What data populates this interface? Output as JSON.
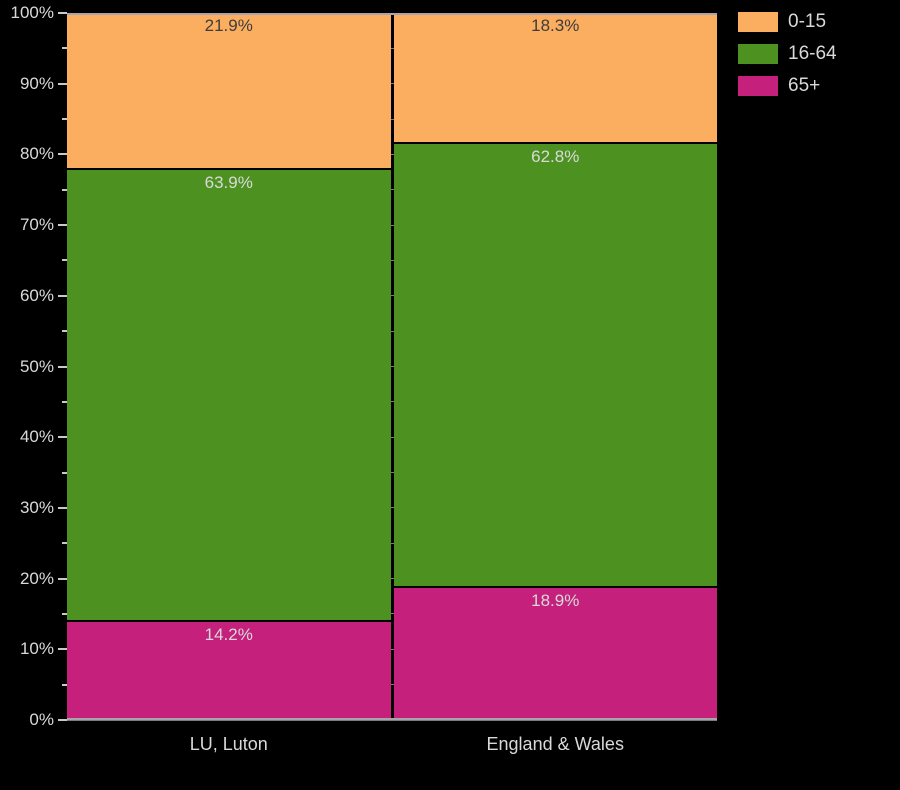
{
  "chart_data": {
    "type": "bar",
    "subtype": "stacked-percentage-columns",
    "title": "",
    "categories": [
      "LU, Luton",
      "England & Wales"
    ],
    "series": [
      {
        "name": "0-15",
        "color": "#fbad60",
        "label_color": "#3d3d3d",
        "values": [
          21.9,
          18.3
        ]
      },
      {
        "name": "16-64",
        "color": "#4d9221",
        "label_color": "#d9d9d9",
        "values": [
          63.9,
          62.8
        ]
      },
      {
        "name": "65+",
        "color": "#c4207c",
        "label_color": "#d9d9d9",
        "values": [
          14.2,
          18.9
        ]
      }
    ],
    "value_labels": [
      [
        "21.9%",
        "18.3%"
      ],
      [
        "63.9%",
        "62.8%"
      ],
      [
        "14.2%",
        "18.9%"
      ]
    ],
    "ylim": [
      0,
      100
    ],
    "y_major_step": 10,
    "y_minor_step": 5,
    "y_tick_labels": [
      "0%",
      "10%",
      "20%",
      "30%",
      "40%",
      "50%",
      "60%",
      "70%",
      "80%",
      "90%",
      "100%"
    ],
    "grid": true,
    "legend_position": "top-right",
    "legend_items": [
      "0-15",
      "16-64",
      "65+"
    ]
  },
  "colors": {
    "background": "#000000",
    "axis_text": "#d9d9d9",
    "tick_mark": "#c9c9c9",
    "gridline": "#7b7b7b",
    "axis_frame": "#a9a4ac",
    "segment_divider": "#000000"
  }
}
